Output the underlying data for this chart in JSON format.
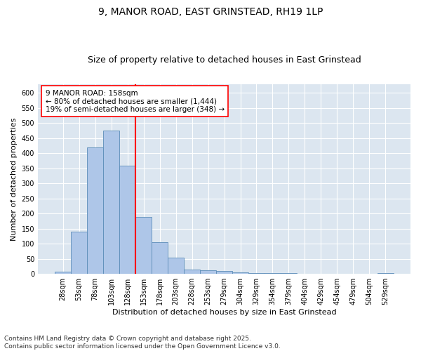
{
  "title1": "9, MANOR ROAD, EAST GRINSTEAD, RH19 1LP",
  "title2": "Size of property relative to detached houses in East Grinstead",
  "xlabel": "Distribution of detached houses by size in East Grinstead",
  "ylabel": "Number of detached properties",
  "categories": [
    "28sqm",
    "53sqm",
    "78sqm",
    "103sqm",
    "128sqm",
    "153sqm",
    "178sqm",
    "203sqm",
    "228sqm",
    "253sqm",
    "279sqm",
    "304sqm",
    "329sqm",
    "354sqm",
    "379sqm",
    "404sqm",
    "429sqm",
    "454sqm",
    "479sqm",
    "504sqm",
    "529sqm"
  ],
  "values": [
    8,
    140,
    420,
    475,
    360,
    190,
    105,
    55,
    15,
    12,
    9,
    5,
    3,
    2,
    2,
    1,
    0,
    0,
    0,
    0,
    3
  ],
  "bar_color": "#aec6e8",
  "bar_edge_color": "#5b8db8",
  "background_color": "#dce6f0",
  "vline_color": "red",
  "annotation_text": "9 MANOR ROAD: 158sqm\n← 80% of detached houses are smaller (1,444)\n19% of semi-detached houses are larger (348) →",
  "annotation_box_color": "white",
  "annotation_box_edge": "red",
  "ylim": [
    0,
    630
  ],
  "yticks": [
    0,
    50,
    100,
    150,
    200,
    250,
    300,
    350,
    400,
    450,
    500,
    550,
    600
  ],
  "footer": "Contains HM Land Registry data © Crown copyright and database right 2025.\nContains public sector information licensed under the Open Government Licence v3.0.",
  "title1_fontsize": 10,
  "title2_fontsize": 9,
  "xlabel_fontsize": 8,
  "ylabel_fontsize": 8,
  "tick_fontsize": 7,
  "annotation_fontsize": 7.5,
  "footer_fontsize": 6.5
}
